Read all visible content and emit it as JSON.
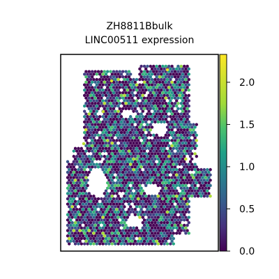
{
  "chart_data": {
    "type": "scatter",
    "title": "ZH8811Bbulk\nLINC00511 expression",
    "title_lines": [
      "ZH8811Bbulk",
      "LINC00511 expression"
    ],
    "marker": "hexagon",
    "colormap": "viridis",
    "colorbar": {
      "min": 0.0,
      "max": 2.33,
      "ticks": [
        0.0,
        0.5,
        1.0,
        1.5,
        2.0
      ],
      "tick_labels": [
        "0.0",
        "0.5",
        "1.0",
        "1.5",
        "2.0"
      ]
    },
    "xlabel": "",
    "ylabel": "",
    "axes_ticks_visible": false,
    "grid": false,
    "legend": "colorbar-right",
    "notable_high_spots": [
      2.2,
      2.1,
      2.05,
      2.0,
      1.9
    ]
  }
}
